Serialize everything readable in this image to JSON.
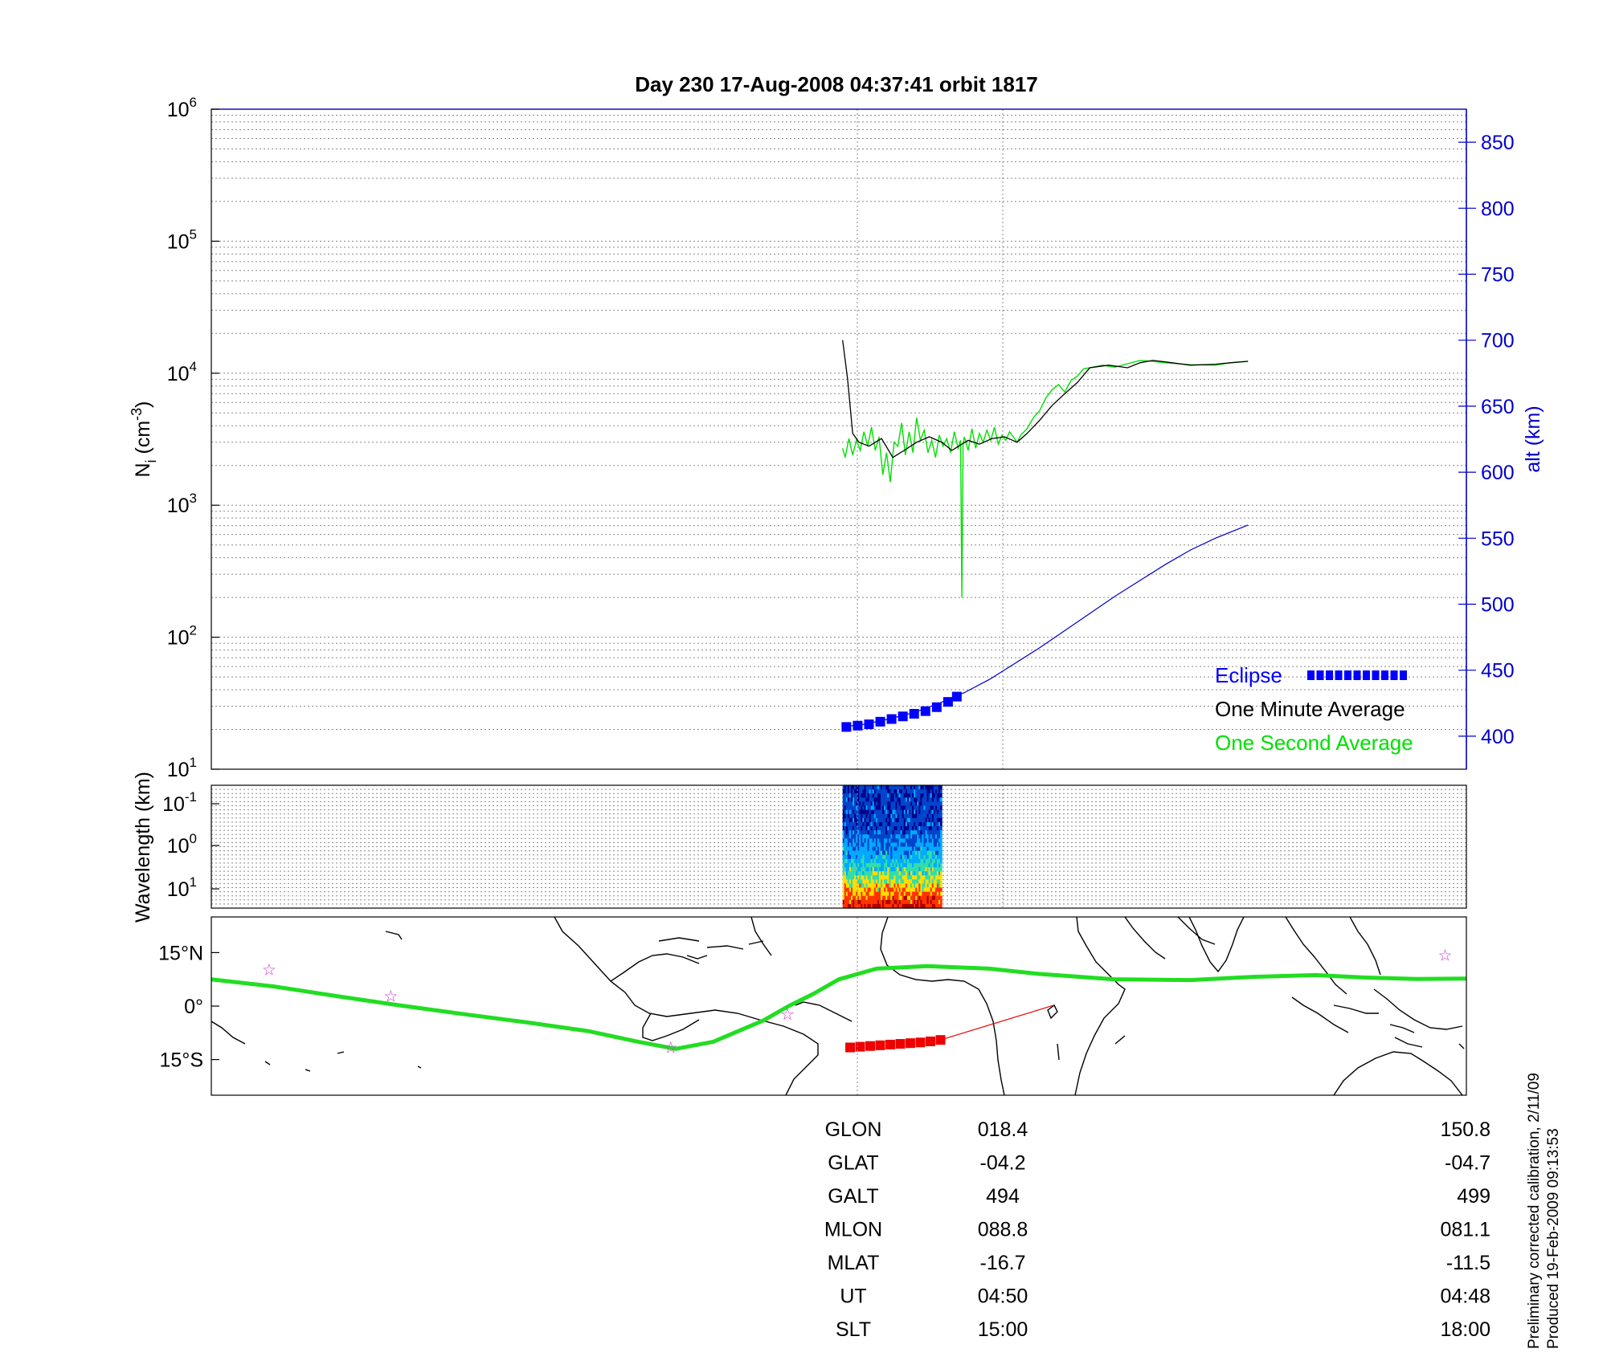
{
  "title": "Day 230  17-Aug-2008 04:37:41   orbit 1817",
  "colors": {
    "axis": "#000000",
    "grid": "#888888",
    "alt_axis": "#0000cc",
    "eclipse": "#0000ff",
    "one_minute": "#000000",
    "one_second": "#00e000",
    "track": "#22dd22",
    "subtrack": "#ee0000",
    "star": "#cc33cc"
  },
  "chart_data": [
    {
      "type": "line",
      "name": "density_panel",
      "ylabel": "N_i (cm^-3)",
      "ylabel_parts": {
        "base": "N",
        "sub": "i",
        "unit": "(cm",
        "sup": "-3",
        "close": ")"
      },
      "y_scale": "log",
      "ylim": [
        10,
        1000000
      ],
      "y_ticks": [
        {
          "base": "10",
          "exp": "1",
          "value": 10
        },
        {
          "base": "10",
          "exp": "2",
          "value": 100
        },
        {
          "base": "10",
          "exp": "3",
          "value": 1000
        },
        {
          "base": "10",
          "exp": "4",
          "value": 10000
        },
        {
          "base": "10",
          "exp": "5",
          "value": 100000
        },
        {
          "base": "10",
          "exp": "6",
          "value": 1000000
        }
      ],
      "y2label": "alt (km)",
      "y2lim": [
        375,
        875
      ],
      "y2_ticks": [
        "400",
        "450",
        "500",
        "550",
        "600",
        "650",
        "700",
        "750",
        "800",
        "850"
      ],
      "xlim": [
        0,
        1
      ],
      "grid": true,
      "legend_position": "bottom-right",
      "legend": [
        {
          "label": "Eclipse",
          "color": "#0000ff",
          "marker": "square"
        },
        {
          "label": "One Minute Average",
          "color": "#000000"
        },
        {
          "label": "One Second Average",
          "color": "#00e000"
        }
      ],
      "series": [
        {
          "name": "One Minute Average",
          "axis": "left",
          "x": [
            0.503,
            0.507,
            0.511,
            0.516,
            0.524,
            0.534,
            0.543,
            0.552,
            0.562,
            0.572,
            0.582,
            0.59,
            0.598,
            0.603,
            0.612,
            0.622,
            0.632,
            0.642,
            0.65,
            0.66,
            0.67,
            0.68,
            0.69,
            0.7,
            0.715,
            0.73,
            0.74,
            0.75,
            0.76,
            0.78,
            0.8,
            0.812,
            0.826
          ],
          "y": [
            17800,
            9000,
            3500,
            3000,
            2800,
            3200,
            2300,
            2600,
            3000,
            3300,
            3000,
            2600,
            2900,
            3100,
            2900,
            3200,
            3300,
            3000,
            3500,
            4400,
            5700,
            7000,
            8500,
            11000,
            11500,
            11000,
            12000,
            12500,
            12200,
            11500,
            11700,
            12000,
            12300
          ]
        },
        {
          "name": "One Second Average",
          "axis": "left",
          "x": [
            0.503,
            0.505,
            0.508,
            0.511,
            0.514,
            0.517,
            0.52,
            0.523,
            0.526,
            0.529,
            0.532,
            0.535,
            0.538,
            0.541,
            0.544,
            0.547,
            0.55,
            0.553,
            0.556,
            0.559,
            0.562,
            0.565,
            0.568,
            0.571,
            0.574,
            0.577,
            0.58,
            0.583,
            0.586,
            0.589,
            0.592,
            0.595,
            0.597,
            0.598,
            0.599,
            0.6,
            0.603,
            0.606,
            0.609,
            0.612,
            0.615,
            0.618,
            0.621,
            0.624,
            0.627,
            0.63,
            0.633,
            0.636,
            0.639,
            0.642,
            0.645,
            0.65,
            0.655,
            0.66,
            0.665,
            0.67,
            0.675,
            0.68,
            0.685,
            0.69,
            0.695,
            0.7,
            0.71,
            0.72,
            0.73,
            0.74,
            0.75,
            0.76,
            0.78,
            0.8,
            0.812,
            0.826
          ],
          "y": [
            2700,
            2300,
            3200,
            2400,
            3100,
            2600,
            3600,
            2800,
            3900,
            2600,
            3300,
            1700,
            2500,
            1500,
            3000,
            2800,
            4200,
            2400,
            3600,
            2500,
            4600,
            3100,
            3700,
            2500,
            3100,
            2300,
            3400,
            2800,
            3200,
            2500,
            3600,
            2700,
            3100,
            200,
            2900,
            3300,
            2600,
            3800,
            2700,
            3500,
            3000,
            3700,
            3100,
            3900,
            2900,
            3400,
            3100,
            3600,
            3300,
            3000,
            3400,
            3800,
            4600,
            5200,
            6500,
            7500,
            8200,
            7200,
            8800,
            9500,
            10800,
            11000,
            11500,
            11100,
            11800,
            12500,
            12300,
            12000,
            11600,
            11500,
            12000,
            12300
          ]
        },
        {
          "name": "alt",
          "axis": "right",
          "x": [
            0.503,
            0.52,
            0.54,
            0.56,
            0.58,
            0.6,
            0.62,
            0.64,
            0.66,
            0.68,
            0.7,
            0.72,
            0.74,
            0.76,
            0.78,
            0.8,
            0.826
          ],
          "y": [
            407,
            409,
            413,
            418,
            425,
            433,
            443,
            455,
            467,
            480,
            493,
            506,
            518,
            530,
            541,
            550,
            560
          ]
        },
        {
          "name": "Eclipse",
          "axis": "right",
          "marker": "square",
          "x": [
            0.506,
            0.515,
            0.524,
            0.533,
            0.542,
            0.551,
            0.56,
            0.569,
            0.578,
            0.587,
            0.594
          ],
          "y": [
            407,
            408,
            409,
            411,
            413,
            415,
            417,
            419,
            422,
            426,
            430
          ]
        }
      ]
    },
    {
      "type": "heatmap",
      "name": "wavelength_panel",
      "ylabel": "Wavelength (km)",
      "y_ticks": [
        {
          "base": "10",
          "exp": "-1"
        },
        {
          "base": "10",
          "exp": "0"
        },
        {
          "base": "10",
          "exp": "1"
        }
      ],
      "x_range": [
        0.503,
        0.582
      ],
      "colorscale": [
        "#000088",
        "#0044cc",
        "#00aaff",
        "#33ddaa",
        "#ffdd00",
        "#ff3300",
        "#aa0000"
      ],
      "rows": [
        "high-wavelength: low power",
        "mid",
        "low-wavelength: high power"
      ]
    },
    {
      "type": "scatter",
      "name": "map_panel",
      "y_ticks": [
        "15°N",
        "0°",
        "15°S"
      ],
      "lat_ticks": [
        15,
        0,
        -15
      ],
      "ylim": [
        -25,
        25
      ],
      "xlim": [
        0,
        1
      ],
      "series": [
        {
          "name": "orbit track",
          "x": [
            0.0,
            0.05,
            0.1,
            0.15,
            0.2,
            0.25,
            0.3,
            0.34,
            0.37,
            0.4,
            0.44,
            0.46,
            0.48,
            0.5,
            0.53,
            0.57,
            0.62,
            0.66,
            0.72,
            0.78,
            0.83,
            0.88,
            0.92,
            0.96,
            1.0
          ],
          "y": [
            7.5,
            5.5,
            2.8,
            0.2,
            -2.2,
            -4.5,
            -7.0,
            -10.0,
            -12.0,
            -10.0,
            -4.0,
            0.0,
            3.5,
            7.5,
            10.5,
            11.2,
            10.5,
            9.0,
            7.5,
            7.3,
            8.2,
            8.7,
            8.0,
            7.6,
            7.7
          ]
        },
        {
          "name": "eclipse subtrack",
          "marker": "square",
          "x": [
            0.509,
            0.517,
            0.525,
            0.533,
            0.541,
            0.549,
            0.557,
            0.565,
            0.573,
            0.581
          ],
          "y": [
            -11.6,
            -11.4,
            -11.2,
            -11.0,
            -10.8,
            -10.6,
            -10.4,
            -10.2,
            -9.9,
            -9.5
          ]
        },
        {
          "name": "subtrack line",
          "x": [
            0.581,
            0.671
          ],
          "y": [
            -9.5,
            0.2
          ]
        },
        {
          "name": "stars",
          "marker": "star",
          "x": [
            0.046,
            0.143,
            0.366,
            0.459,
            0.983
          ],
          "y": [
            10.2,
            2.8,
            -11.6,
            -2.2,
            14.3
          ]
        }
      ]
    }
  ],
  "info_table": {
    "rows": [
      {
        "label": "GLON",
        "mid": "018.4",
        "right": "150.8"
      },
      {
        "label": "GLAT",
        "mid": "-04.2",
        "right": "-04.7"
      },
      {
        "label": "GALT",
        "mid": "494",
        "right": "499"
      },
      {
        "label": "MLON",
        "mid": "088.8",
        "right": "081.1"
      },
      {
        "label": "MLAT",
        "mid": "-16.7",
        "right": "-11.5"
      },
      {
        "label": "UT",
        "mid": "04:50",
        "right": "04:48"
      },
      {
        "label": "SLT",
        "mid": "15:00",
        "right": "18:00"
      }
    ]
  },
  "footnote": {
    "line1": "Preliminary corrected calibration, 2/11/09",
    "line2": "Produced 19-Feb-2009 09:13:53"
  }
}
